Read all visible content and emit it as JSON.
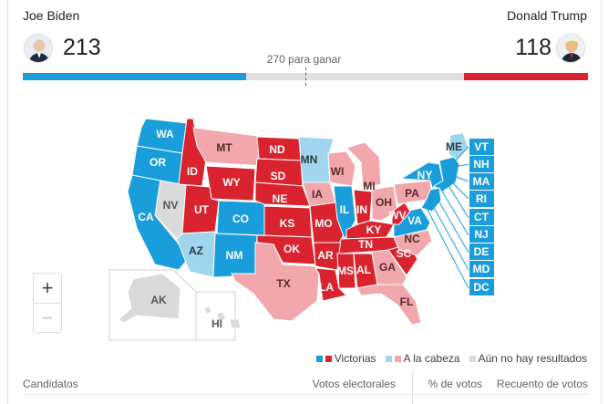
{
  "candidates": {
    "left": {
      "name": "Joe Biden",
      "votes": "213",
      "color": "#1a9edb"
    },
    "right": {
      "name": "Donald Trump",
      "votes": "118",
      "color": "#d9232e"
    }
  },
  "threshold_label": "270 para ganar",
  "progress": {
    "total": 538,
    "left_ev": 213,
    "right_ev": 118
  },
  "colors": {
    "dem_win": "#1a9edb",
    "dem_lead": "#9fd6ee",
    "rep_win": "#d9232e",
    "rep_lead": "#f1a7ab",
    "no_result": "#dadada",
    "state_border": "#ffffff"
  },
  "states": [
    {
      "id": "WA",
      "status": "dem_win"
    },
    {
      "id": "OR",
      "status": "dem_win"
    },
    {
      "id": "CA",
      "status": "dem_win"
    },
    {
      "id": "NV",
      "status": "no_result"
    },
    {
      "id": "ID",
      "status": "rep_win"
    },
    {
      "id": "MT",
      "status": "rep_lead"
    },
    {
      "id": "WY",
      "status": "rep_win"
    },
    {
      "id": "UT",
      "status": "rep_win"
    },
    {
      "id": "AZ",
      "status": "dem_lead"
    },
    {
      "id": "CO",
      "status": "dem_win"
    },
    {
      "id": "NM",
      "status": "dem_win"
    },
    {
      "id": "ND",
      "status": "rep_win"
    },
    {
      "id": "SD",
      "status": "rep_win"
    },
    {
      "id": "NE",
      "status": "rep_win"
    },
    {
      "id": "KS",
      "status": "rep_win"
    },
    {
      "id": "OK",
      "status": "rep_win"
    },
    {
      "id": "TX",
      "status": "rep_lead"
    },
    {
      "id": "MN",
      "status": "dem_lead"
    },
    {
      "id": "IA",
      "status": "rep_lead"
    },
    {
      "id": "MO",
      "status": "rep_win"
    },
    {
      "id": "AR",
      "status": "rep_win"
    },
    {
      "id": "LA",
      "status": "rep_win"
    },
    {
      "id": "WI",
      "status": "rep_lead"
    },
    {
      "id": "IL",
      "status": "dem_win"
    },
    {
      "id": "IN",
      "status": "rep_win"
    },
    {
      "id": "MI",
      "status": "rep_lead"
    },
    {
      "id": "OH",
      "status": "rep_lead"
    },
    {
      "id": "KY",
      "status": "rep_win"
    },
    {
      "id": "TN",
      "status": "rep_win"
    },
    {
      "id": "MS",
      "status": "rep_win"
    },
    {
      "id": "AL",
      "status": "rep_win"
    },
    {
      "id": "GA",
      "status": "rep_lead"
    },
    {
      "id": "FL",
      "status": "rep_lead"
    },
    {
      "id": "SC",
      "status": "rep_win"
    },
    {
      "id": "NC",
      "status": "rep_lead"
    },
    {
      "id": "VA",
      "status": "dem_win"
    },
    {
      "id": "WV",
      "status": "rep_win"
    },
    {
      "id": "PA",
      "status": "rep_lead"
    },
    {
      "id": "NY",
      "status": "dem_win"
    },
    {
      "id": "ME",
      "status": "dem_lead"
    },
    {
      "id": "AK",
      "status": "no_result"
    },
    {
      "id": "HI",
      "status": "no_result"
    },
    {
      "id": "VT",
      "status": "dem_win"
    },
    {
      "id": "NH",
      "status": "dem_win"
    },
    {
      "id": "MA",
      "status": "dem_win"
    },
    {
      "id": "RI",
      "status": "dem_win"
    },
    {
      "id": "CT",
      "status": "dem_win"
    },
    {
      "id": "NJ",
      "status": "dem_win"
    },
    {
      "id": "DE",
      "status": "dem_win"
    },
    {
      "id": "MD",
      "status": "dem_win"
    },
    {
      "id": "DC",
      "status": "dem_win"
    }
  ],
  "zoom": {
    "in_label": "+",
    "out_label": "−"
  },
  "legend": [
    {
      "label": "Victorias",
      "colors": [
        "#1a9edb",
        "#d9232e"
      ]
    },
    {
      "label": "A la cabeza",
      "colors": [
        "#9fd6ee",
        "#f1a7ab"
      ]
    },
    {
      "label": "Aún no hay resultados",
      "colors": [
        "#dadada"
      ]
    }
  ],
  "table": {
    "col_candidates": "Candidatos",
    "col_electoral": "Votos electorales",
    "col_pct": "% de votos",
    "col_count": "Recuento de votos"
  }
}
